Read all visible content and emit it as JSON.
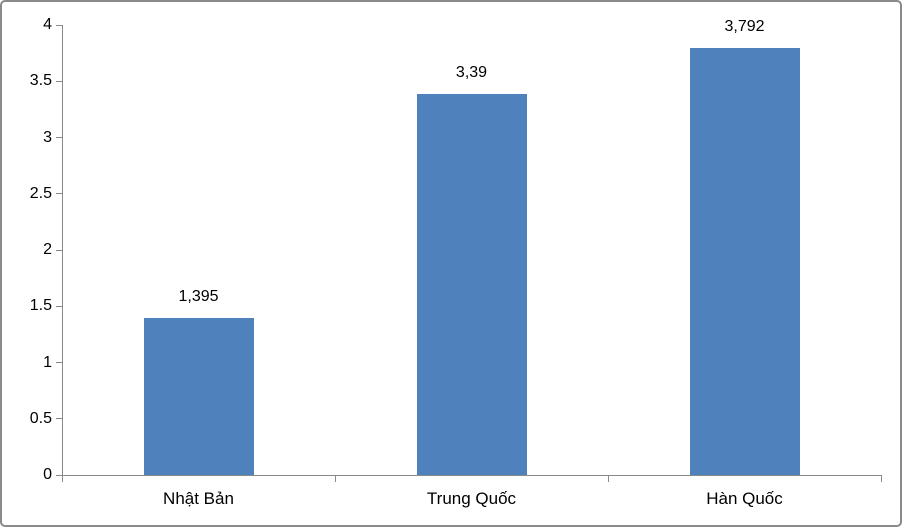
{
  "chart_data": {
    "type": "bar",
    "categories": [
      "Nhật Bản",
      "Trung Quốc",
      "Hàn Quốc"
    ],
    "values": [
      1.395,
      3.39,
      3.792
    ],
    "value_labels": [
      "1,395",
      "3,39",
      "3,792"
    ],
    "title": "",
    "xlabel": "",
    "ylabel": "",
    "ylim": [
      0,
      4
    ],
    "yticks": [
      0,
      0.5,
      1,
      1.5,
      2,
      2.5,
      3,
      3.5,
      4
    ],
    "ytick_labels": [
      "0",
      "0.5",
      "1",
      "1.5",
      "2",
      "2.5",
      "3",
      "3.5",
      "4"
    ],
    "grid": false,
    "legend": false,
    "colors": {
      "bar_fill": "#4F81BD",
      "axis_line": "#898989",
      "frame_border": "#8A8A8A",
      "text": "#000000",
      "background": "#FFFFFF"
    }
  }
}
